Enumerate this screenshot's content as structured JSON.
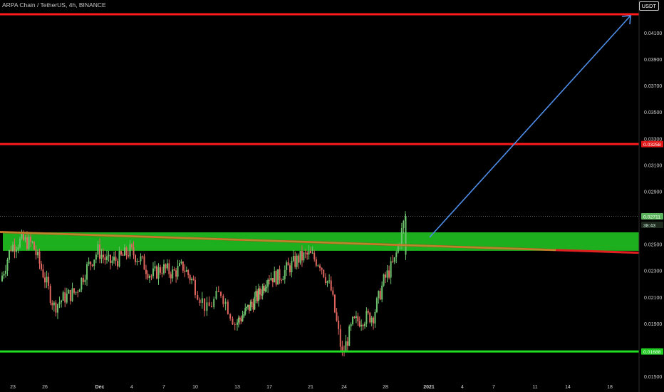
{
  "header": {
    "symbol": "ARPA Chain / TetherUS, 4h, BINANCE"
  },
  "price_scale": {
    "currency_button": "USDT"
  },
  "price_labels": {
    "last_price": "0.02711",
    "countdown": "38:43",
    "resistance_1": "0.03258",
    "support": "0.01688"
  },
  "colors": {
    "background": "#000000",
    "up": "#6ec36e",
    "down": "#e0665f",
    "resistance_line": "#ff1a1a",
    "support_line": "#22dd22",
    "zone_fill": "#1fb81f",
    "trendline": "#b8892a",
    "projection_arrow": "#4f8ee8",
    "axis_text": "#cfcfcf"
  },
  "chart_data": {
    "type": "candlestick",
    "interval": "4h",
    "exchange": "BINANCE",
    "pair": "ARPA/USDT",
    "y_ticks": [
      "0.04100",
      "0.03900",
      "0.03700",
      "0.03500",
      "0.03300",
      "0.03100",
      "0.02900",
      "0.02500",
      "0.02300",
      "0.02100",
      "0.01900",
      "0.01500"
    ],
    "x_ticks": [
      "23",
      "26",
      "Dec",
      "4",
      "7",
      "10",
      "13",
      "17",
      "21",
      "24",
      "28",
      "2021",
      "4",
      "7",
      "11",
      "14",
      "18"
    ],
    "ylim": [
      0.0148,
      0.0425
    ],
    "last_price": 0.02711,
    "horizontal_levels": [
      {
        "kind": "resistance",
        "value": 0.0424,
        "color": "#ff1a1a"
      },
      {
        "kind": "resistance",
        "value": 0.03258,
        "color": "#ff1a1a"
      },
      {
        "kind": "support",
        "value": 0.01688,
        "color": "#22dd22"
      }
    ],
    "zone": {
      "low": 0.0245,
      "high": 0.0259
    },
    "trendline": {
      "from_date": "Nov 22",
      "from_value": 0.02595,
      "to_date": "Jan 19",
      "to_value": 0.02435
    },
    "projection_arrow": {
      "from_date": "Dec 30",
      "from_value": 0.0256,
      "to_date": "Jan 19",
      "to_value": 0.0416
    },
    "price_path": [
      {
        "x": "Nov 22",
        "value": 0.0222
      },
      {
        "x": "Nov 23",
        "value": 0.0248
      },
      {
        "x": "Nov 24",
        "value": 0.0253
      },
      {
        "x": "Nov 25",
        "value": 0.025
      },
      {
        "x": "Nov 26",
        "value": 0.0228
      },
      {
        "x": "Nov 27",
        "value": 0.0203
      },
      {
        "x": "Nov 28",
        "value": 0.021
      },
      {
        "x": "Nov 29",
        "value": 0.0214
      },
      {
        "x": "Nov 30",
        "value": 0.0232
      },
      {
        "x": "Dec 1",
        "value": 0.0245
      },
      {
        "x": "Dec 2",
        "value": 0.0236
      },
      {
        "x": "Dec 3",
        "value": 0.0239
      },
      {
        "x": "Dec 4",
        "value": 0.0245
      },
      {
        "x": "Dec 5",
        "value": 0.0238
      },
      {
        "x": "Dec 6",
        "value": 0.0226
      },
      {
        "x": "Dec 7",
        "value": 0.0232
      },
      {
        "x": "Dec 8",
        "value": 0.0228
      },
      {
        "x": "Dec 9",
        "value": 0.0233
      },
      {
        "x": "Dec 10",
        "value": 0.0221
      },
      {
        "x": "Dec 11",
        "value": 0.02
      },
      {
        "x": "Dec 12",
        "value": 0.0214
      },
      {
        "x": "Dec 13",
        "value": 0.019
      },
      {
        "x": "Dec 14",
        "value": 0.0197
      },
      {
        "x": "Dec 15",
        "value": 0.0205
      },
      {
        "x": "Dec 16",
        "value": 0.0213
      },
      {
        "x": "Dec 17",
        "value": 0.0226
      },
      {
        "x": "Dec 18",
        "value": 0.0225
      },
      {
        "x": "Dec 19",
        "value": 0.0232
      },
      {
        "x": "Dec 20",
        "value": 0.0239
      },
      {
        "x": "Dec 21",
        "value": 0.0242
      },
      {
        "x": "Dec 22",
        "value": 0.0236
      },
      {
        "x": "Dec 23",
        "value": 0.0215
      },
      {
        "x": "Dec 24",
        "value": 0.0166
      },
      {
        "x": "Dec 25",
        "value": 0.019
      },
      {
        "x": "Dec 26",
        "value": 0.0194
      },
      {
        "x": "Dec 27",
        "value": 0.0196
      },
      {
        "x": "Dec 28",
        "value": 0.0222
      },
      {
        "x": "Dec 29",
        "value": 0.0237
      },
      {
        "x": "Dec 30",
        "value": 0.0271
      }
    ]
  }
}
